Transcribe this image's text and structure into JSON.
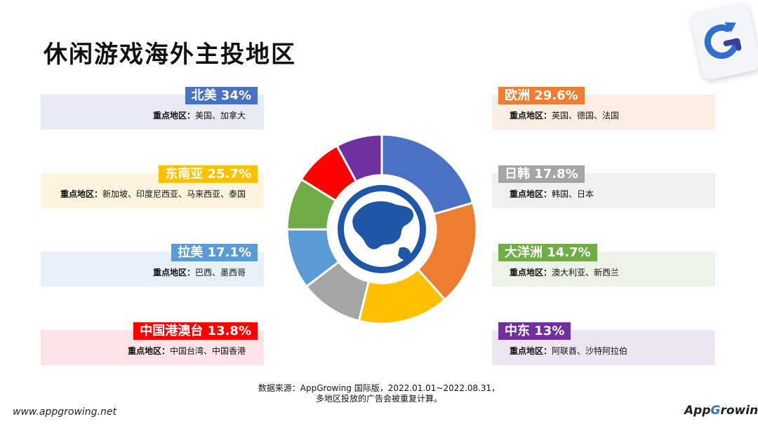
{
  "title": "休闲游戏海外主投地区",
  "detail_prefix": "重点地区：",
  "chart_data": {
    "type": "pie",
    "variant": "donut",
    "title": "",
    "slices": [
      {
        "name": "北美",
        "value": 34,
        "label": "北美 34%",
        "color": "#4a72c4",
        "bg": "#e6ebf5",
        "regions": "美国、加拿大"
      },
      {
        "name": "欧洲",
        "value": 29.6,
        "label": "欧洲 29.6%",
        "color": "#ed7d31",
        "bg": "#fdeee3",
        "regions": "英国、德国、法国"
      },
      {
        "name": "东南亚",
        "value": 25.7,
        "label": "东南亚 25.7%",
        "color": "#ffc000",
        "bg": "#fff5dc",
        "regions": "新加坡、印度尼西亚、马来西亚、泰国"
      },
      {
        "name": "日韩",
        "value": 17.8,
        "label": "日韩 17.8%",
        "color": "#a5a5a5",
        "bg": "#f0f0f0",
        "regions": "韩国、日本"
      },
      {
        "name": "拉美",
        "value": 17.1,
        "label": "拉美 17.1%",
        "color": "#5b9bd5",
        "bg": "#e8f0fa",
        "regions": "巴西、墨西哥"
      },
      {
        "name": "大洋洲",
        "value": 14.7,
        "label": "大洋洲 14.7%",
        "color": "#70ad47",
        "bg": "#ebf4e6",
        "regions": "澳大利亚、新西兰"
      },
      {
        "name": "中国港澳台",
        "value": 13.8,
        "label": "中国港澳台 13.8%",
        "color": "#ff0000",
        "bg": "#fde4e6",
        "regions": "中国台湾、中国香港"
      },
      {
        "name": "中东",
        "value": 13,
        "label": "中东 13%",
        "color": "#7030a0",
        "bg": "#ece6f3",
        "regions": "阿联酋、沙特阿拉伯"
      }
    ],
    "ring_order": [
      "北美",
      "欧洲",
      "东南亚",
      "日韩",
      "拉美",
      "大洋洲",
      "中国港澳台",
      "中东"
    ],
    "legend_left": [
      "北美",
      "东南亚",
      "拉美",
      "中国港澳台"
    ],
    "legend_right": [
      "欧洲",
      "日韩",
      "大洋洲",
      "中东"
    ],
    "center_icon": "globe-icon"
  },
  "footer": {
    "source_line1": "数据来源：AppGrowing 国际版，2022.01.01~2022.08.31，",
    "source_line2": "多地区投放的广告会被重复计算。",
    "site_url": "www.appgrowing.net",
    "brand_pre": "App",
    "brand_g": "G",
    "brand_post": "rowing"
  },
  "logo_icon": "appgrowing-logo-icon"
}
